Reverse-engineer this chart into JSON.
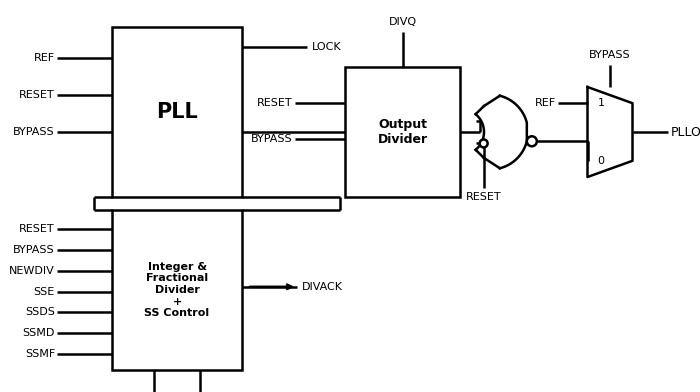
{
  "bg_color": "#ffffff",
  "line_color": "#000000",
  "text_color": "#000000",
  "pll_label": "PLL",
  "out_div_label": "Output\nDivider",
  "int_frac_label": "Integer &\nFractional\nDivider\n+\nSS Control",
  "pll_inputs": [
    "REF",
    "RESET",
    "BYPASS"
  ],
  "int_frac_inputs": [
    "RESET",
    "BYPASS",
    "NEWDIV",
    "SSE",
    "SSDS",
    "SSMD",
    "SSMF"
  ],
  "output_label": "PLLOUT",
  "figsize": [
    7.0,
    3.92
  ],
  "dpi": 100
}
